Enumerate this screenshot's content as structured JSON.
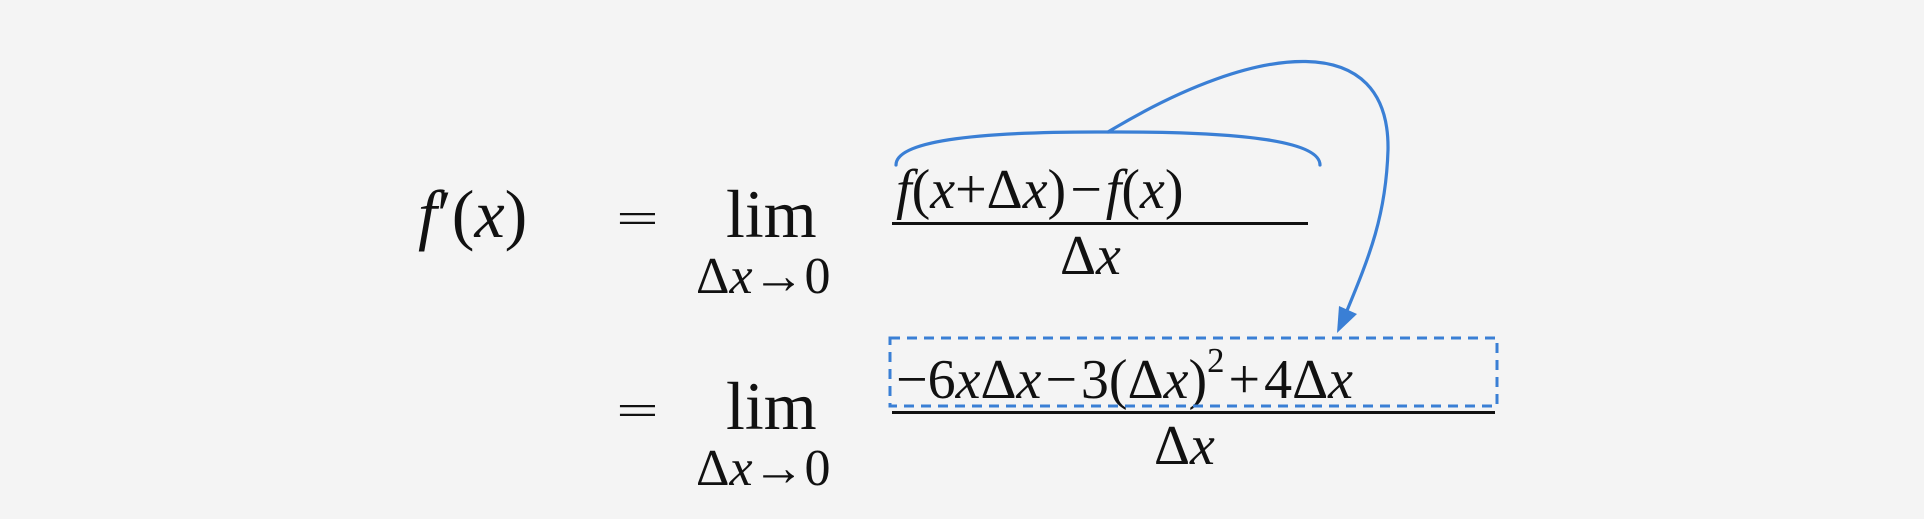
{
  "line1": {
    "lhs": {
      "f": "f",
      "prime": "′",
      "open": "(",
      "x": "x",
      "close": ")"
    },
    "equals": "=",
    "lim": "lim",
    "lim_sub": {
      "delta": "Δ",
      "x": "x",
      "arrow": "→",
      "zero": "0"
    },
    "numerator": {
      "f1": "f",
      "open1": "(",
      "x1": "x",
      "plus": "+",
      "delta": "Δ",
      "x2": "x",
      "close1": ")",
      "minus": "−",
      "f2": "f",
      "open2": "(",
      "x3": "x",
      "close2": ")"
    },
    "denominator": {
      "delta": "Δ",
      "x": "x"
    }
  },
  "line2": {
    "equals": "=",
    "lim": "lim",
    "lim_sub": {
      "delta": "Δ",
      "x": "x",
      "arrow": "→",
      "zero": "0"
    },
    "numerator": {
      "minus1": "−",
      "six": "6",
      "x1": "x",
      "delta1": "Δ",
      "x2": "x",
      "minus2": "−",
      "three": "3",
      "open": "(",
      "delta2": "Δ",
      "x3": "x",
      "close": ")",
      "exp": "2",
      "plus": "+",
      "four": "4",
      "delta3": "Δ",
      "x4": "x"
    },
    "denominator": {
      "delta": "Δ",
      "x": "x"
    }
  },
  "annotation": {
    "color": "#3a7fd5"
  }
}
